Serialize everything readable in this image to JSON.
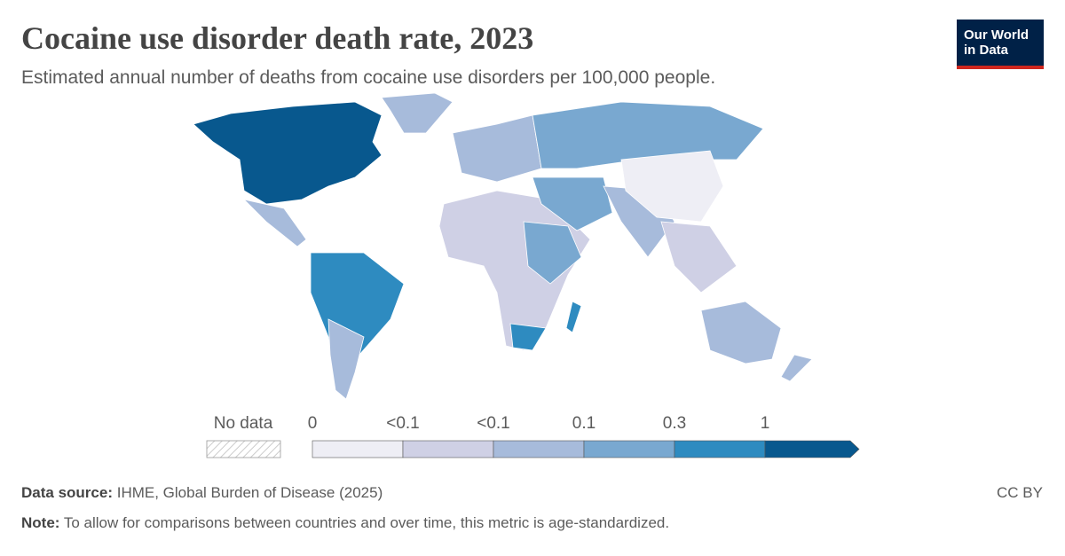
{
  "header": {
    "title": "Cocaine use disorder death rate, 2023",
    "subtitle": "Estimated annual number of deaths from cocaine use disorders per 100,000 people.",
    "logo": [
      "Our World",
      "in Data"
    ]
  },
  "legend": {
    "no_data": "No data",
    "ticks": [
      "0",
      "<0.1",
      "<0.1",
      "0.1",
      "0.3",
      "1"
    ],
    "colors": [
      "#eeeef5",
      "#cfd0e5",
      "#a7bbdb",
      "#79a8d0",
      "#2e8bc0",
      "#08588e"
    ]
  },
  "footer": {
    "source_label": "Data source:",
    "source": "IHME, Global Burden of Disease (2025)",
    "license": "CC BY",
    "note_label": "Note:",
    "note": "To allow for comparisons between countries and over time, this metric is age-standardized."
  }
}
